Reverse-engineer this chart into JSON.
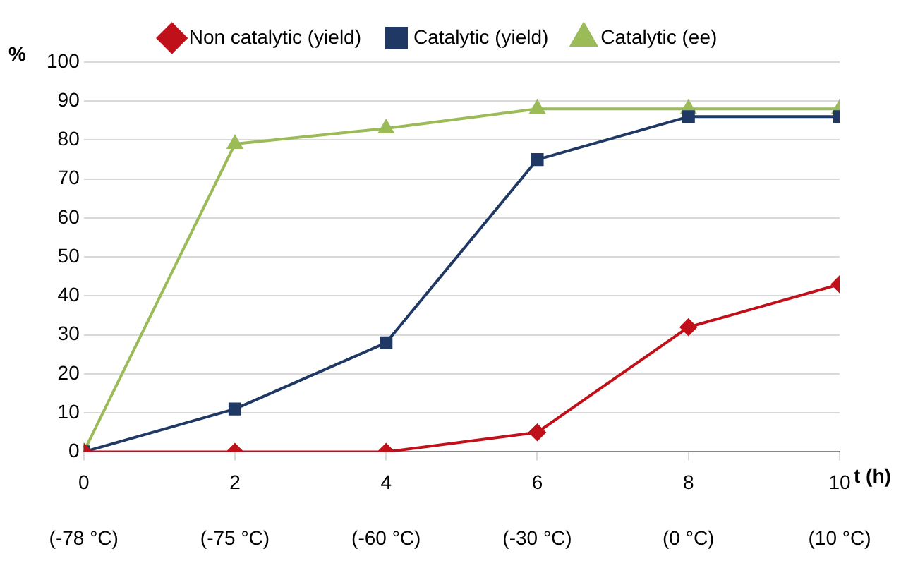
{
  "chart_data": {
    "type": "line",
    "xlabel": "t (h)",
    "ylabel": "%",
    "x": [
      0,
      2,
      4,
      6,
      8,
      10
    ],
    "series": [
      {
        "name": "Non catalytic (yield)",
        "color": "#c0101a",
        "marker": "diamond",
        "values": [
          0,
          0,
          0,
          5,
          32,
          43
        ]
      },
      {
        "name": "Catalytic (yield)",
        "color": "#1f3864",
        "marker": "square",
        "values": [
          0,
          11,
          28,
          75,
          86,
          86
        ]
      },
      {
        "name": "Catalytic (ee)",
        "color": "#9bbb59",
        "marker": "triangle",
        "values": [
          0,
          79,
          83,
          88,
          88,
          88
        ]
      }
    ],
    "xlim": [
      0,
      10
    ],
    "xticks": [
      0,
      2,
      4,
      6,
      8,
      10
    ],
    "annotations": [
      "(-78 °C)",
      "(-75 °C)",
      "(-60 °C)",
      "(-30 °C)",
      "(0 °C)",
      "(10 °C)"
    ],
    "ylim": [
      0,
      100
    ],
    "yticks": [
      0,
      10,
      20,
      30,
      40,
      50,
      60,
      70,
      80,
      90,
      100
    ],
    "grid": "y",
    "legend": "top",
    "line_style": "solid"
  }
}
